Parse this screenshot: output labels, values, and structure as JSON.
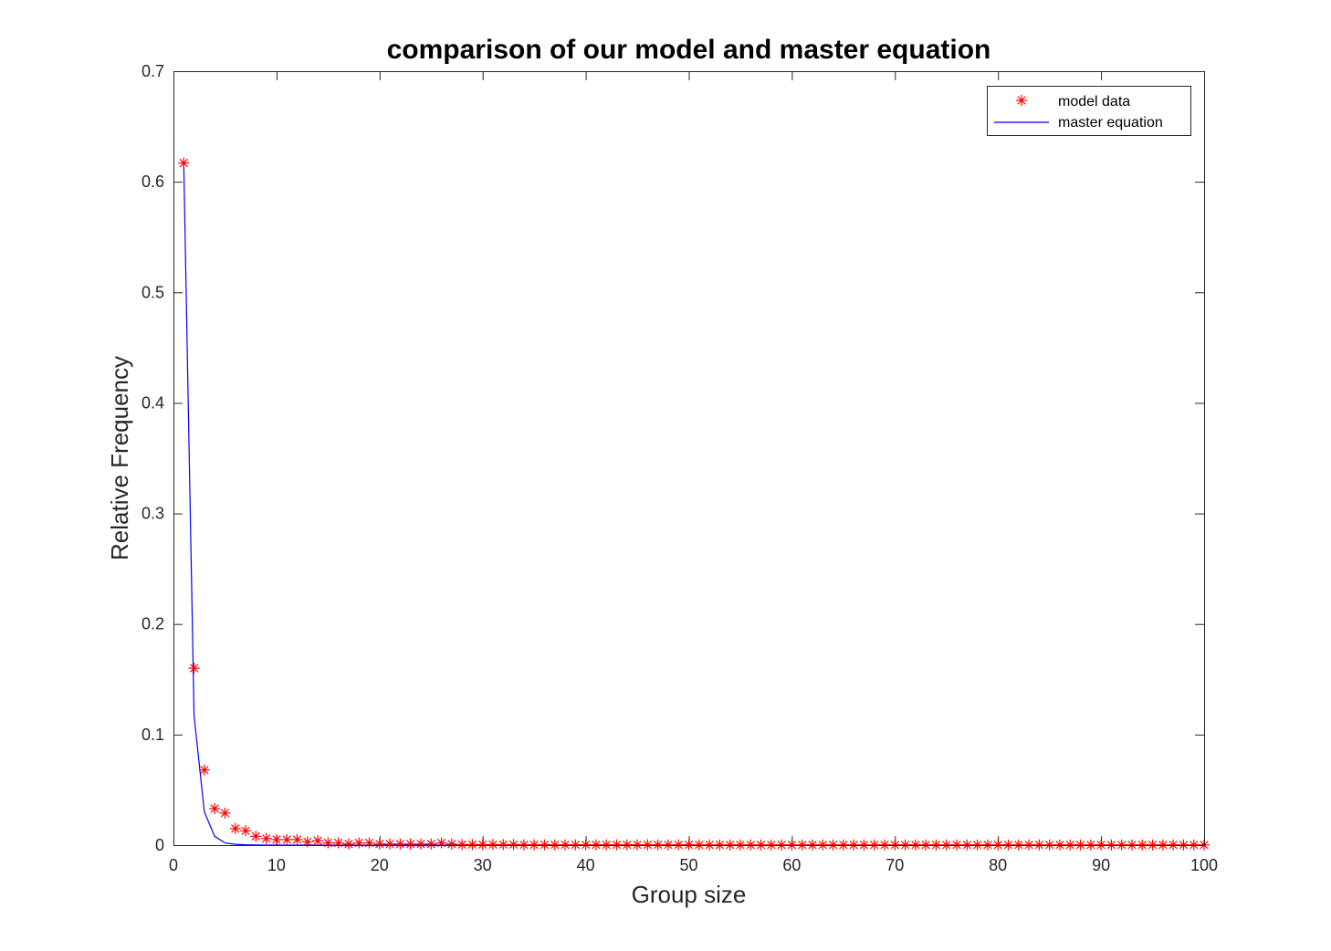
{
  "chart_data": {
    "type": "line",
    "title": "comparison of our model and master equation",
    "xlabel": "Group size",
    "ylabel": "Relative Frequency",
    "xlim": [
      0,
      100
    ],
    "ylim": [
      0,
      0.7
    ],
    "xticks": [
      0,
      10,
      20,
      30,
      40,
      50,
      60,
      70,
      80,
      90,
      100
    ],
    "yticks": [
      0,
      0.1,
      0.2,
      0.3,
      0.4,
      0.5,
      0.6,
      0.7
    ],
    "x_tick_labels": [
      "0",
      "10",
      "20",
      "30",
      "40",
      "50",
      "60",
      "70",
      "80",
      "90",
      "100"
    ],
    "y_tick_labels": [
      "0",
      "0.1",
      "0.2",
      "0.3",
      "0.4",
      "0.5",
      "0.6",
      "0.7"
    ],
    "grid": false,
    "legend_position": "top-right",
    "series": [
      {
        "name": "model data",
        "type": "scatter",
        "marker": "asterisk",
        "color": "#ff0000",
        "x": [
          1,
          2,
          3,
          4,
          5,
          6,
          7,
          8,
          9,
          10,
          11,
          12,
          13,
          14,
          15,
          16,
          17,
          18,
          19,
          20,
          21,
          22,
          23,
          24,
          25,
          26,
          27,
          28,
          29,
          30,
          31,
          32,
          33,
          34,
          35,
          36,
          37,
          38,
          39,
          40,
          41,
          42,
          43,
          44,
          45,
          46,
          47,
          48,
          49,
          50,
          51,
          52,
          53,
          54,
          55,
          56,
          57,
          58,
          59,
          60,
          61,
          62,
          63,
          64,
          65,
          66,
          67,
          68,
          69,
          70,
          71,
          72,
          73,
          74,
          75,
          76,
          77,
          78,
          79,
          80,
          81,
          82,
          83,
          84,
          85,
          86,
          87,
          88,
          89,
          90,
          91,
          92,
          93,
          94,
          95,
          96,
          97,
          98,
          99,
          100
        ],
        "y": [
          0.617,
          0.16,
          0.068,
          0.033,
          0.029,
          0.015,
          0.013,
          0.008,
          0.006,
          0.005,
          0.005,
          0.005,
          0.003,
          0.004,
          0.002,
          0.002,
          0.001,
          0.002,
          0.002,
          0.001,
          0.001,
          0.001,
          0.001,
          0.001,
          0.001,
          0.002,
          0.001,
          0.0005,
          0.0005,
          0.0005,
          0.0005,
          0.0005,
          0.0005,
          0.0003,
          0.0003,
          0.0003,
          0.0003,
          0.0003,
          0.0003,
          0.0003,
          0.0003,
          0.0003,
          0.0003,
          0.0003,
          0.0003,
          0.0003,
          0.0003,
          0.0003,
          0.0003,
          0.0003,
          0.0002,
          0.0002,
          0.0002,
          0.0002,
          0.0002,
          0.0002,
          0.0002,
          0.0002,
          0.0002,
          0.0002,
          0.0002,
          0.0002,
          0.0002,
          0.0002,
          0.0002,
          0.0002,
          0.0002,
          0.0002,
          0.0002,
          0.0002,
          0.0002,
          0.0002,
          0.0002,
          0.0002,
          0.0002,
          0.0002,
          0.0002,
          0.0002,
          0.0002,
          0.0002,
          0.0002,
          0.0002,
          0.0002,
          0.0002,
          0.0002,
          0.0002,
          0.0002,
          0.0002,
          0.0002,
          0.0002,
          0.0002,
          0.0002,
          0.0002,
          0.0002,
          0.0002,
          0.0002,
          0.0002,
          0.0002,
          0.0002,
          0.0002
        ]
      },
      {
        "name": "master equation",
        "type": "line",
        "color": "#0000ff",
        "x": [
          1,
          2,
          3,
          4,
          5,
          6,
          7,
          8,
          9,
          10,
          12,
          15,
          20,
          30,
          40,
          50,
          60,
          70,
          80,
          90,
          100
        ],
        "y": [
          0.617,
          0.117,
          0.03,
          0.008,
          0.002,
          0.0007,
          0.0003,
          0.0001,
          5e-05,
          2e-05,
          0,
          0,
          0,
          0,
          0,
          0,
          0,
          0,
          0,
          0,
          0
        ]
      }
    ]
  }
}
